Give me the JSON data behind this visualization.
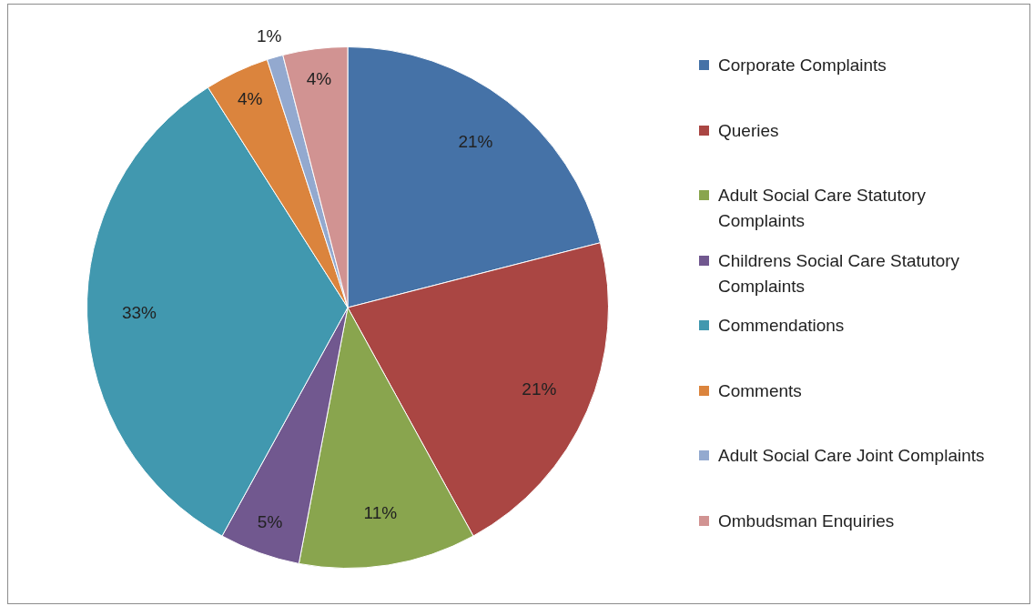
{
  "chart_data": {
    "type": "pie",
    "categories": [
      "Corporate Complaints",
      "Queries",
      "Adult Social Care Statutory Complaints",
      "Childrens Social Care Statutory Complaints",
      "Commendations",
      "Comments",
      "Adult Social Care Joint Complaints",
      "Ombudsman Enquiries"
    ],
    "values": [
      21,
      21,
      11,
      5,
      33,
      4,
      1,
      4
    ],
    "colors": [
      "#4572a7",
      "#aa4643",
      "#89a54e",
      "#71588f",
      "#4198af",
      "#db843d",
      "#93a9cf",
      "#d19392"
    ],
    "value_labels": [
      "21%",
      "21%",
      "11%",
      "5%",
      "33%",
      "4%",
      "1%",
      "4%"
    ],
    "legend": "right"
  }
}
